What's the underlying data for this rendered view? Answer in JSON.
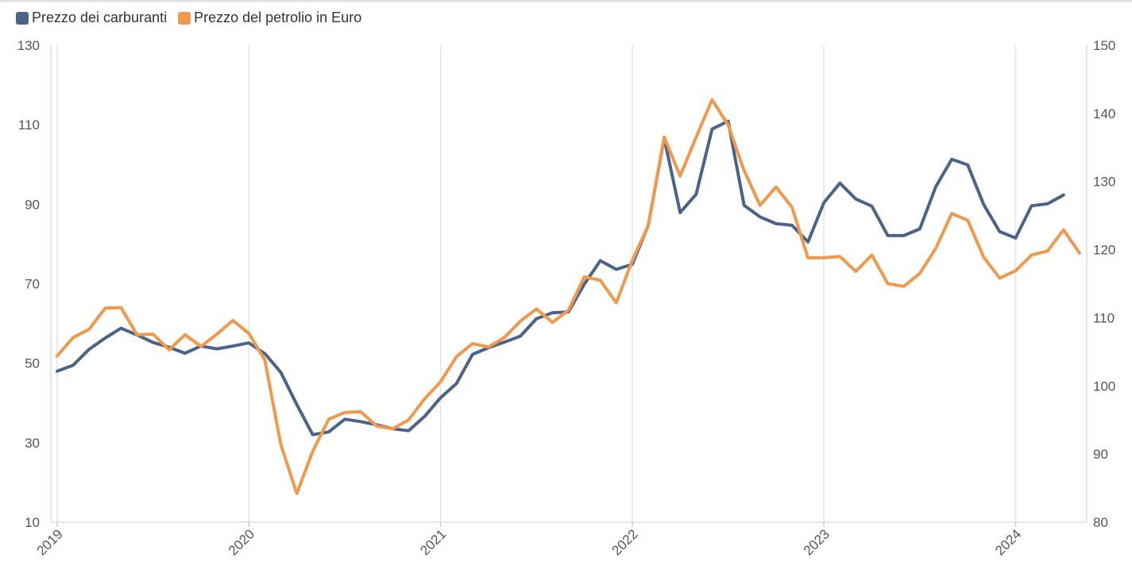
{
  "chart_data": {
    "type": "line",
    "title": "",
    "xlabel": "",
    "ylabel": "",
    "x_start": "2019-01",
    "x_step": "month",
    "x_ticks": [
      "2019",
      "2020",
      "2021",
      "2022",
      "2023",
      "2024"
    ],
    "x_range_months": [
      0,
      65
    ],
    "y_left": {
      "ticks": [
        10,
        30,
        50,
        70,
        90,
        110,
        130
      ],
      "range": [
        10,
        130
      ]
    },
    "y_right": {
      "ticks": [
        80,
        90,
        100,
        110,
        120,
        130,
        140,
        150
      ],
      "range": [
        80,
        150
      ]
    },
    "grid": "vertical",
    "legend_position": "top-left",
    "series": [
      {
        "name": "Prezzo dei carburanti",
        "axis": "left",
        "color": "#4a6489",
        "values": [
          48,
          49.5,
          53.5,
          56.3,
          58.8,
          57.1,
          55.2,
          54,
          52.5,
          54.3,
          53.6,
          54.3,
          55.1,
          52.4,
          47.7,
          39.6,
          32,
          32.7,
          35.9,
          35.3,
          34.5,
          33.5,
          33,
          36.6,
          41.3,
          44.9,
          52.2,
          53.9,
          55.3,
          56.8,
          61.2,
          62.7,
          62.9,
          69.9,
          75.8,
          73.6,
          74.9,
          84.6,
          106.6,
          87.9,
          92.5,
          108.9,
          110.9,
          89.7,
          86.8,
          85.1,
          84.7,
          80.5,
          90.4,
          95.3,
          91.3,
          89.5,
          82.1,
          82.1,
          83.8,
          94.4,
          101.3,
          99.9,
          89.9,
          83.1,
          81.5,
          89.6,
          90.1,
          92.3
        ]
      },
      {
        "name": "Prezzo del petrolio in Euro",
        "axis": "right",
        "color": "#f0994d",
        "values": [
          104.4,
          107.1,
          108.3,
          111.4,
          111.5,
          107.5,
          107.6,
          105.3,
          107.5,
          105.8,
          107.6,
          109.6,
          107.7,
          103.8,
          91.4,
          84.2,
          90.4,
          95.1,
          96.1,
          96.2,
          94.1,
          93.7,
          95,
          98.1,
          100.6,
          104.3,
          106.2,
          105.7,
          107.1,
          109.5,
          111.3,
          109.3,
          111.1,
          116,
          115.5,
          112.2,
          118.4,
          123.5,
          136.5,
          130.8,
          136.5,
          142,
          138.3,
          131.6,
          126.5,
          129.2,
          126.2,
          118.8,
          118.8,
          119,
          116.8,
          119.2,
          115,
          114.6,
          116.5,
          120.2,
          125.3,
          124.3,
          118.9,
          115.8,
          116.9,
          119.2,
          119.8,
          122.9,
          119.5
        ]
      }
    ]
  }
}
